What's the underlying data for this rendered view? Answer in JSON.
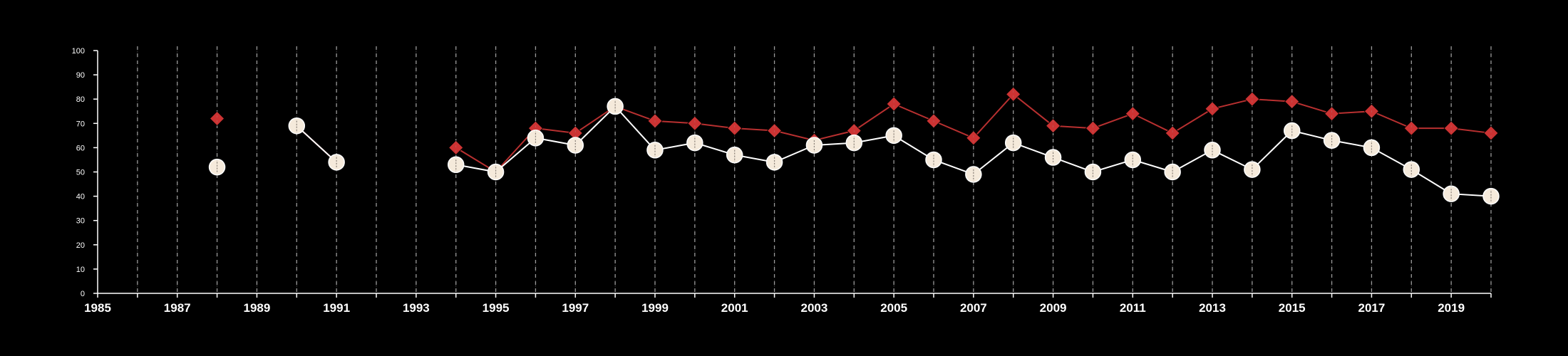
{
  "chart_data": {
    "type": "line",
    "xlim": [
      1985,
      2020
    ],
    "ylim": [
      0,
      100
    ],
    "x_tick_labels": [
      "1985",
      "1987",
      "1989",
      "1991",
      "1993",
      "1995",
      "1997",
      "1999",
      "2001",
      "2003",
      "2005",
      "2007",
      "2009",
      "2011",
      "2013",
      "2015",
      "2017",
      "2019"
    ],
    "y_tick_labels": [
      "0",
      "10",
      "20",
      "30",
      "40",
      "50",
      "60",
      "70",
      "80",
      "90",
      "100"
    ],
    "grid": "vertical-dashed",
    "series": [
      {
        "marker": "diamond",
        "color": "#cc3333",
        "points": [
          {
            "x": 1988,
            "y": 72
          },
          {
            "x": 1990,
            "y": 69
          },
          {
            "x": 1991,
            "y": 54
          },
          {
            "x": 1994,
            "y": 60
          },
          {
            "x": 1995,
            "y": 50
          },
          {
            "x": 1996,
            "y": 68
          },
          {
            "x": 1997,
            "y": 66
          },
          {
            "x": 1998,
            "y": 77
          },
          {
            "x": 1999,
            "y": 71
          },
          {
            "x": 2000,
            "y": 70
          },
          {
            "x": 2001,
            "y": 68
          },
          {
            "x": 2002,
            "y": 67
          },
          {
            "x": 2003,
            "y": 63
          },
          {
            "x": 2004,
            "y": 67
          },
          {
            "x": 2005,
            "y": 78
          },
          {
            "x": 2006,
            "y": 71
          },
          {
            "x": 2007,
            "y": 64
          },
          {
            "x": 2008,
            "y": 82
          },
          {
            "x": 2009,
            "y": 69
          },
          {
            "x": 2010,
            "y": 68
          },
          {
            "x": 2011,
            "y": 74
          },
          {
            "x": 2012,
            "y": 66
          },
          {
            "x": 2013,
            "y": 76
          },
          {
            "x": 2014,
            "y": 80
          },
          {
            "x": 2015,
            "y": 79
          },
          {
            "x": 2016,
            "y": 74
          },
          {
            "x": 2017,
            "y": 75
          },
          {
            "x": 2018,
            "y": 68
          },
          {
            "x": 2019,
            "y": 68
          },
          {
            "x": 2020,
            "y": 66
          }
        ]
      },
      {
        "marker": "circle",
        "color": "#f5eadb",
        "points": [
          {
            "x": 1988,
            "y": 52
          },
          {
            "x": 1990,
            "y": 69
          },
          {
            "x": 1991,
            "y": 54
          },
          {
            "x": 1994,
            "y": 53
          },
          {
            "x": 1995,
            "y": 50
          },
          {
            "x": 1996,
            "y": 64
          },
          {
            "x": 1997,
            "y": 61
          },
          {
            "x": 1998,
            "y": 77
          },
          {
            "x": 1999,
            "y": 59
          },
          {
            "x": 2000,
            "y": 62
          },
          {
            "x": 2001,
            "y": 57
          },
          {
            "x": 2002,
            "y": 54
          },
          {
            "x": 2003,
            "y": 61
          },
          {
            "x": 2004,
            "y": 62
          },
          {
            "x": 2005,
            "y": 65
          },
          {
            "x": 2006,
            "y": 55
          },
          {
            "x": 2007,
            "y": 49
          },
          {
            "x": 2008,
            "y": 62
          },
          {
            "x": 2009,
            "y": 56
          },
          {
            "x": 2010,
            "y": 50
          },
          {
            "x": 2011,
            "y": 55
          },
          {
            "x": 2012,
            "y": 50
          },
          {
            "x": 2013,
            "y": 59
          },
          {
            "x": 2014,
            "y": 51
          },
          {
            "x": 2015,
            "y": 67
          },
          {
            "x": 2016,
            "y": 63
          },
          {
            "x": 2017,
            "y": 60
          },
          {
            "x": 2018,
            "y": 51
          },
          {
            "x": 2019,
            "y": 41
          },
          {
            "x": 2020,
            "y": 40
          }
        ]
      }
    ]
  }
}
